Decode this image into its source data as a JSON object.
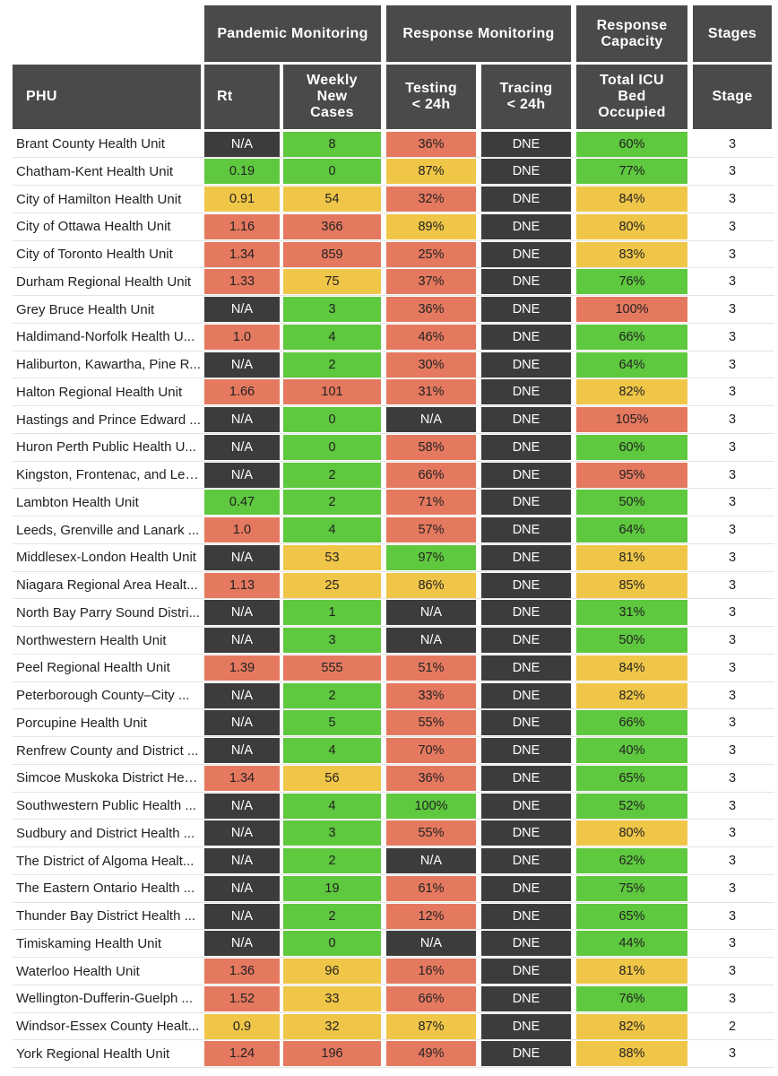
{
  "colors": {
    "header_bg": "#4a4a4a",
    "green": "#5ec83e",
    "yellow": "#f0c648",
    "red": "#e5795f",
    "dark": "#3c3c3c"
  },
  "headers": {
    "pandemic_monitoring": "Pandemic Monitoring",
    "response_monitoring": "Response Monitoring",
    "response_capacity": "Response\nCapacity",
    "stages": "Stages",
    "phu": "PHU",
    "rt": "Rt",
    "weekly_new_cases": "Weekly\nNew\nCases",
    "testing": "Testing\n< 24h",
    "tracing": "Tracing\n< 24h",
    "icu": "Total ICU\nBed\nOccupied",
    "stage": "Stage"
  },
  "rows": [
    {
      "phu": "Brant County Health Unit",
      "rt": "N/A",
      "rt_c": "dark",
      "cases": "8",
      "cases_c": "green",
      "testing": "36%",
      "testing_c": "red",
      "tracing": "DNE",
      "tracing_c": "dark",
      "icu": "60%",
      "icu_c": "green",
      "stage": "3"
    },
    {
      "phu": "Chatham-Kent Health Unit",
      "rt": "0.19",
      "rt_c": "green",
      "cases": "0",
      "cases_c": "green",
      "testing": "87%",
      "testing_c": "yellow",
      "tracing": "DNE",
      "tracing_c": "dark",
      "icu": "77%",
      "icu_c": "green",
      "stage": "3"
    },
    {
      "phu": "City of Hamilton Health Unit",
      "rt": "0.91",
      "rt_c": "yellow",
      "cases": "54",
      "cases_c": "yellow",
      "testing": "32%",
      "testing_c": "red",
      "tracing": "DNE",
      "tracing_c": "dark",
      "icu": "84%",
      "icu_c": "yellow",
      "stage": "3"
    },
    {
      "phu": "City of Ottawa Health Unit",
      "rt": "1.16",
      "rt_c": "red",
      "cases": "366",
      "cases_c": "red",
      "testing": "89%",
      "testing_c": "yellow",
      "tracing": "DNE",
      "tracing_c": "dark",
      "icu": "80%",
      "icu_c": "yellow",
      "stage": "3"
    },
    {
      "phu": "City of Toronto Health Unit",
      "rt": "1.34",
      "rt_c": "red",
      "cases": "859",
      "cases_c": "red",
      "testing": "25%",
      "testing_c": "red",
      "tracing": "DNE",
      "tracing_c": "dark",
      "icu": "83%",
      "icu_c": "yellow",
      "stage": "3"
    },
    {
      "phu": "Durham Regional Health Unit",
      "rt": "1.33",
      "rt_c": "red",
      "cases": "75",
      "cases_c": "yellow",
      "testing": "37%",
      "testing_c": "red",
      "tracing": "DNE",
      "tracing_c": "dark",
      "icu": "76%",
      "icu_c": "green",
      "stage": "3"
    },
    {
      "phu": "Grey Bruce Health Unit",
      "rt": "N/A",
      "rt_c": "dark",
      "cases": "3",
      "cases_c": "green",
      "testing": "36%",
      "testing_c": "red",
      "tracing": "DNE",
      "tracing_c": "dark",
      "icu": "100%",
      "icu_c": "red",
      "stage": "3"
    },
    {
      "phu": "Haldimand-Norfolk Health U...",
      "rt": "1.0",
      "rt_c": "red",
      "cases": "4",
      "cases_c": "green",
      "testing": "46%",
      "testing_c": "red",
      "tracing": "DNE",
      "tracing_c": "dark",
      "icu": "66%",
      "icu_c": "green",
      "stage": "3"
    },
    {
      "phu": "Haliburton, Kawartha, Pine R...",
      "rt": "N/A",
      "rt_c": "dark",
      "cases": "2",
      "cases_c": "green",
      "testing": "30%",
      "testing_c": "red",
      "tracing": "DNE",
      "tracing_c": "dark",
      "icu": "64%",
      "icu_c": "green",
      "stage": "3"
    },
    {
      "phu": "Halton Regional Health Unit",
      "rt": "1.66",
      "rt_c": "red",
      "cases": "101",
      "cases_c": "red",
      "testing": "31%",
      "testing_c": "red",
      "tracing": "DNE",
      "tracing_c": "dark",
      "icu": "82%",
      "icu_c": "yellow",
      "stage": "3"
    },
    {
      "phu": "Hastings and Prince Edward ...",
      "rt": "N/A",
      "rt_c": "dark",
      "cases": "0",
      "cases_c": "green",
      "testing": "N/A",
      "testing_c": "dark",
      "tracing": "DNE",
      "tracing_c": "dark",
      "icu": "105%",
      "icu_c": "red",
      "stage": "3"
    },
    {
      "phu": "Huron Perth Public Health U...",
      "rt": "N/A",
      "rt_c": "dark",
      "cases": "0",
      "cases_c": "green",
      "testing": "58%",
      "testing_c": "red",
      "tracing": "DNE",
      "tracing_c": "dark",
      "icu": "60%",
      "icu_c": "green",
      "stage": "3"
    },
    {
      "phu": "Kingston, Frontenac, and Len...",
      "rt": "N/A",
      "rt_c": "dark",
      "cases": "2",
      "cases_c": "green",
      "testing": "66%",
      "testing_c": "red",
      "tracing": "DNE",
      "tracing_c": "dark",
      "icu": "95%",
      "icu_c": "red",
      "stage": "3"
    },
    {
      "phu": "Lambton Health Unit",
      "rt": "0.47",
      "rt_c": "green",
      "cases": "2",
      "cases_c": "green",
      "testing": "71%",
      "testing_c": "red",
      "tracing": "DNE",
      "tracing_c": "dark",
      "icu": "50%",
      "icu_c": "green",
      "stage": "3"
    },
    {
      "phu": "Leeds, Grenville and Lanark ...",
      "rt": "1.0",
      "rt_c": "red",
      "cases": "4",
      "cases_c": "green",
      "testing": "57%",
      "testing_c": "red",
      "tracing": "DNE",
      "tracing_c": "dark",
      "icu": "64%",
      "icu_c": "green",
      "stage": "3"
    },
    {
      "phu": "Middlesex-London Health Unit",
      "rt": "N/A",
      "rt_c": "dark",
      "cases": "53",
      "cases_c": "yellow",
      "testing": "97%",
      "testing_c": "green",
      "tracing": "DNE",
      "tracing_c": "dark",
      "icu": "81%",
      "icu_c": "yellow",
      "stage": "3"
    },
    {
      "phu": "Niagara Regional Area Healt...",
      "rt": "1.13",
      "rt_c": "red",
      "cases": "25",
      "cases_c": "yellow",
      "testing": "86%",
      "testing_c": "yellow",
      "tracing": "DNE",
      "tracing_c": "dark",
      "icu": "85%",
      "icu_c": "yellow",
      "stage": "3"
    },
    {
      "phu": "North Bay Parry Sound Distri...",
      "rt": "N/A",
      "rt_c": "dark",
      "cases": "1",
      "cases_c": "green",
      "testing": "N/A",
      "testing_c": "dark",
      "tracing": "DNE",
      "tracing_c": "dark",
      "icu": "31%",
      "icu_c": "green",
      "stage": "3"
    },
    {
      "phu": "Northwestern Health Unit",
      "rt": "N/A",
      "rt_c": "dark",
      "cases": "3",
      "cases_c": "green",
      "testing": "N/A",
      "testing_c": "dark",
      "tracing": "DNE",
      "tracing_c": "dark",
      "icu": "50%",
      "icu_c": "green",
      "stage": "3"
    },
    {
      "phu": "Peel Regional Health Unit",
      "rt": "1.39",
      "rt_c": "red",
      "cases": "555",
      "cases_c": "red",
      "testing": "51%",
      "testing_c": "red",
      "tracing": "DNE",
      "tracing_c": "dark",
      "icu": "84%",
      "icu_c": "yellow",
      "stage": "3"
    },
    {
      "phu": "Peterborough County–City ...",
      "rt": "N/A",
      "rt_c": "dark",
      "cases": "2",
      "cases_c": "green",
      "testing": "33%",
      "testing_c": "red",
      "tracing": "DNE",
      "tracing_c": "dark",
      "icu": "82%",
      "icu_c": "yellow",
      "stage": "3"
    },
    {
      "phu": "Porcupine Health Unit",
      "rt": "N/A",
      "rt_c": "dark",
      "cases": "5",
      "cases_c": "green",
      "testing": "55%",
      "testing_c": "red",
      "tracing": "DNE",
      "tracing_c": "dark",
      "icu": "66%",
      "icu_c": "green",
      "stage": "3"
    },
    {
      "phu": "Renfrew County and District ...",
      "rt": "N/A",
      "rt_c": "dark",
      "cases": "4",
      "cases_c": "green",
      "testing": "70%",
      "testing_c": "red",
      "tracing": "DNE",
      "tracing_c": "dark",
      "icu": "40%",
      "icu_c": "green",
      "stage": "3"
    },
    {
      "phu": "Simcoe Muskoka District Hea...",
      "rt": "1.34",
      "rt_c": "red",
      "cases": "56",
      "cases_c": "yellow",
      "testing": "36%",
      "testing_c": "red",
      "tracing": "DNE",
      "tracing_c": "dark",
      "icu": "65%",
      "icu_c": "green",
      "stage": "3"
    },
    {
      "phu": "Southwestern Public Health ...",
      "rt": "N/A",
      "rt_c": "dark",
      "cases": "4",
      "cases_c": "green",
      "testing": "100%",
      "testing_c": "green",
      "tracing": "DNE",
      "tracing_c": "dark",
      "icu": "52%",
      "icu_c": "green",
      "stage": "3"
    },
    {
      "phu": "Sudbury and District Health ...",
      "rt": "N/A",
      "rt_c": "dark",
      "cases": "3",
      "cases_c": "green",
      "testing": "55%",
      "testing_c": "red",
      "tracing": "DNE",
      "tracing_c": "dark",
      "icu": "80%",
      "icu_c": "yellow",
      "stage": "3"
    },
    {
      "phu": "The District of Algoma Healt...",
      "rt": "N/A",
      "rt_c": "dark",
      "cases": "2",
      "cases_c": "green",
      "testing": "N/A",
      "testing_c": "dark",
      "tracing": "DNE",
      "tracing_c": "dark",
      "icu": "62%",
      "icu_c": "green",
      "stage": "3"
    },
    {
      "phu": "The Eastern Ontario Health ...",
      "rt": "N/A",
      "rt_c": "dark",
      "cases": "19",
      "cases_c": "green",
      "testing": "61%",
      "testing_c": "red",
      "tracing": "DNE",
      "tracing_c": "dark",
      "icu": "75%",
      "icu_c": "green",
      "stage": "3"
    },
    {
      "phu": "Thunder Bay District Health ...",
      "rt": "N/A",
      "rt_c": "dark",
      "cases": "2",
      "cases_c": "green",
      "testing": "12%",
      "testing_c": "red",
      "tracing": "DNE",
      "tracing_c": "dark",
      "icu": "65%",
      "icu_c": "green",
      "stage": "3"
    },
    {
      "phu": "Timiskaming Health Unit",
      "rt": "N/A",
      "rt_c": "dark",
      "cases": "0",
      "cases_c": "green",
      "testing": "N/A",
      "testing_c": "dark",
      "tracing": "DNE",
      "tracing_c": "dark",
      "icu": "44%",
      "icu_c": "green",
      "stage": "3"
    },
    {
      "phu": "Waterloo Health Unit",
      "rt": "1.36",
      "rt_c": "red",
      "cases": "96",
      "cases_c": "yellow",
      "testing": "16%",
      "testing_c": "red",
      "tracing": "DNE",
      "tracing_c": "dark",
      "icu": "81%",
      "icu_c": "yellow",
      "stage": "3"
    },
    {
      "phu": "Wellington-Dufferin-Guelph ...",
      "rt": "1.52",
      "rt_c": "red",
      "cases": "33",
      "cases_c": "yellow",
      "testing": "66%",
      "testing_c": "red",
      "tracing": "DNE",
      "tracing_c": "dark",
      "icu": "76%",
      "icu_c": "green",
      "stage": "3"
    },
    {
      "phu": "Windsor-Essex County Healt...",
      "rt": "0.9",
      "rt_c": "yellow",
      "cases": "32",
      "cases_c": "yellow",
      "testing": "87%",
      "testing_c": "yellow",
      "tracing": "DNE",
      "tracing_c": "dark",
      "icu": "82%",
      "icu_c": "yellow",
      "stage": "2"
    },
    {
      "phu": "York Regional Health Unit",
      "rt": "1.24",
      "rt_c": "red",
      "cases": "196",
      "cases_c": "red",
      "testing": "49%",
      "testing_c": "red",
      "tracing": "DNE",
      "tracing_c": "dark",
      "icu": "88%",
      "icu_c": "yellow",
      "stage": "3"
    }
  ]
}
